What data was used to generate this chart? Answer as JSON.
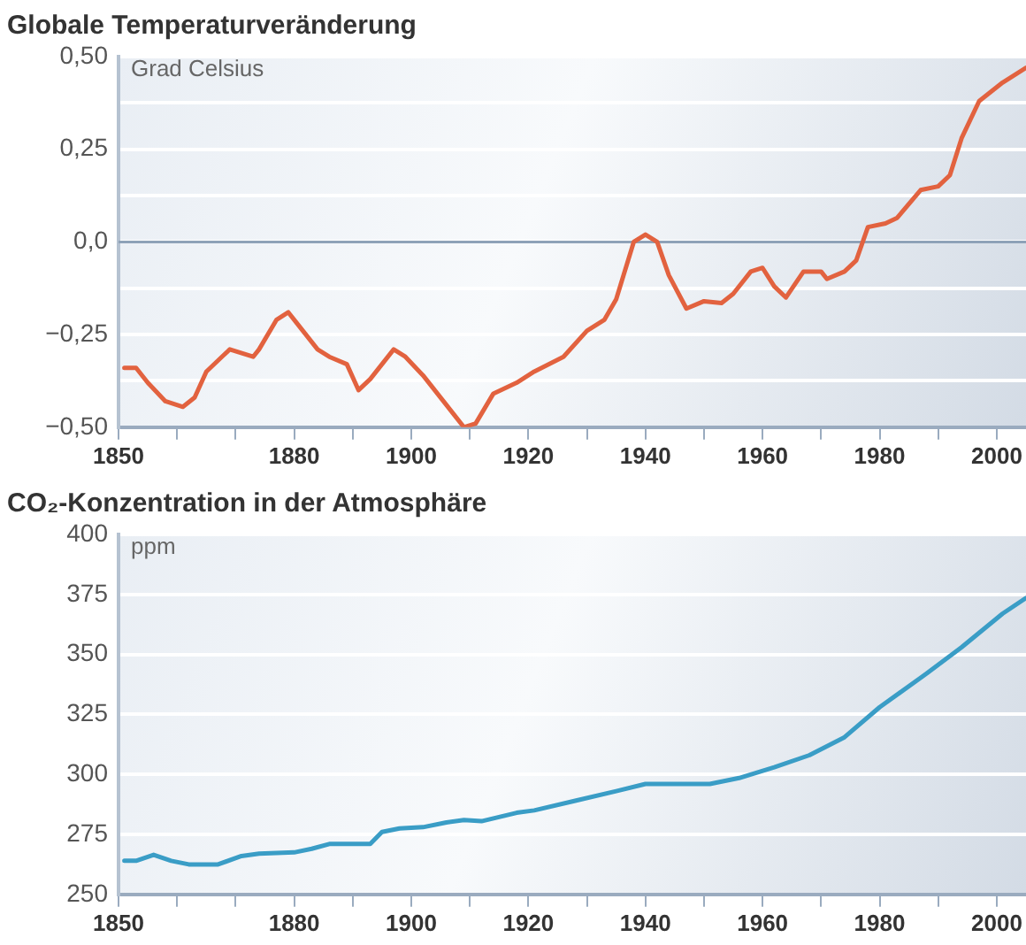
{
  "chart_data": [
    {
      "type": "line",
      "title": "Globale Temperaturveränderung",
      "ylabel": "Grad Celsius",
      "x": [
        1851,
        1853,
        1855,
        1858,
        1861,
        1863,
        1865,
        1869,
        1873,
        1874,
        1877,
        1879,
        1880,
        1884,
        1886,
        1889,
        1891,
        1893,
        1897,
        1899,
        1902,
        1906,
        1909,
        1911,
        1914,
        1918,
        1921,
        1926,
        1930,
        1933,
        1935,
        1938,
        1940,
        1942,
        1944,
        1947,
        1950,
        1953,
        1955,
        1958,
        1960,
        1962,
        1964,
        1967,
        1970,
        1971,
        1974,
        1976,
        1978,
        1981,
        1983,
        1987,
        1990,
        1992,
        1994,
        1997,
        2001,
        2005
      ],
      "series": [
        {
          "color": "#e2623f",
          "values": [
            -0.34,
            -0.34,
            -0.38,
            -0.43,
            -0.445,
            -0.42,
            -0.35,
            -0.29,
            -0.31,
            -0.29,
            -0.21,
            -0.19,
            -0.21,
            -0.29,
            -0.31,
            -0.33,
            -0.4,
            -0.37,
            -0.29,
            -0.31,
            -0.36,
            -0.44,
            -0.5,
            -0.49,
            -0.41,
            -0.38,
            -0.35,
            -0.31,
            -0.24,
            -0.21,
            -0.155,
            0.0,
            0.02,
            0.0,
            -0.09,
            -0.18,
            -0.16,
            -0.165,
            -0.14,
            -0.08,
            -0.07,
            -0.12,
            -0.15,
            -0.08,
            -0.08,
            -0.1,
            -0.08,
            -0.05,
            0.04,
            0.05,
            0.065,
            0.14,
            0.15,
            0.18,
            0.28,
            0.38,
            0.43,
            0.47
          ]
        }
      ],
      "xlim": [
        1850,
        2005
      ],
      "xticks": [
        1850,
        {
          "value": 1860,
          "label": null
        },
        {
          "value": 1870,
          "label": null
        },
        1880,
        {
          "value": 1890,
          "label": null
        },
        1900,
        {
          "value": 1910,
          "label": null
        },
        1920,
        {
          "value": 1930,
          "label": null
        },
        1940,
        {
          "value": 1950,
          "label": null
        },
        1960,
        {
          "value": 1970,
          "label": null
        },
        1980,
        {
          "value": 1990,
          "label": null
        },
        2000
      ],
      "ylim": [
        -0.5,
        0.5
      ],
      "yticks": [
        {
          "value": -0.5,
          "label": "−0,50"
        },
        {
          "value": -0.375,
          "label": null
        },
        {
          "value": -0.25,
          "label": "−0,25"
        },
        {
          "value": -0.125,
          "label": null
        },
        {
          "value": 0,
          "label": "0,0"
        },
        {
          "value": 0.125,
          "label": null
        },
        {
          "value": 0.25,
          "label": "0,25"
        },
        {
          "value": 0.375,
          "label": null
        },
        {
          "value": 0.5,
          "label": "0,50"
        }
      ],
      "ref_lines": [
        {
          "axis": "y",
          "value": 0,
          "color": "#8ea2b8"
        }
      ],
      "grid": "y",
      "marker": "none"
    },
    {
      "type": "line",
      "title": "CO₂-Konzentration in der Atmosphäre",
      "ylabel": "ppm",
      "x": [
        1851,
        1853,
        1856,
        1859,
        1862,
        1867,
        1871,
        1874,
        1880,
        1883,
        1886,
        1893,
        1895,
        1898,
        1902,
        1906,
        1909,
        1912,
        1918,
        1921,
        1928,
        1935,
        1940,
        1951,
        1956,
        1962,
        1968,
        1974,
        1980,
        1988,
        1994,
        2001,
        2005
      ],
      "series": [
        {
          "color": "#3a9dc6",
          "values": [
            264,
            264,
            266.5,
            264,
            262.5,
            262.5,
            266,
            267,
            267.5,
            269,
            271,
            271,
            276,
            277.5,
            278,
            280,
            281,
            280.5,
            284,
            285,
            289,
            293,
            296,
            296,
            298.5,
            303,
            308,
            315.5,
            328,
            342,
            353,
            367,
            373.5
          ]
        }
      ],
      "xlim": [
        1850,
        2005
      ],
      "xticks": [
        1850,
        {
          "value": 1860,
          "label": null
        },
        {
          "value": 1870,
          "label": null
        },
        1880,
        {
          "value": 1890,
          "label": null
        },
        1900,
        {
          "value": 1910,
          "label": null
        },
        1920,
        {
          "value": 1930,
          "label": null
        },
        1940,
        {
          "value": 1950,
          "label": null
        },
        1960,
        {
          "value": 1970,
          "label": null
        },
        1980,
        {
          "value": 1990,
          "label": null
        },
        2000
      ],
      "ylim": [
        250,
        400
      ],
      "yticks": [
        250,
        275,
        300,
        325,
        350,
        375,
        400
      ],
      "grid": "y",
      "marker": "none"
    }
  ]
}
